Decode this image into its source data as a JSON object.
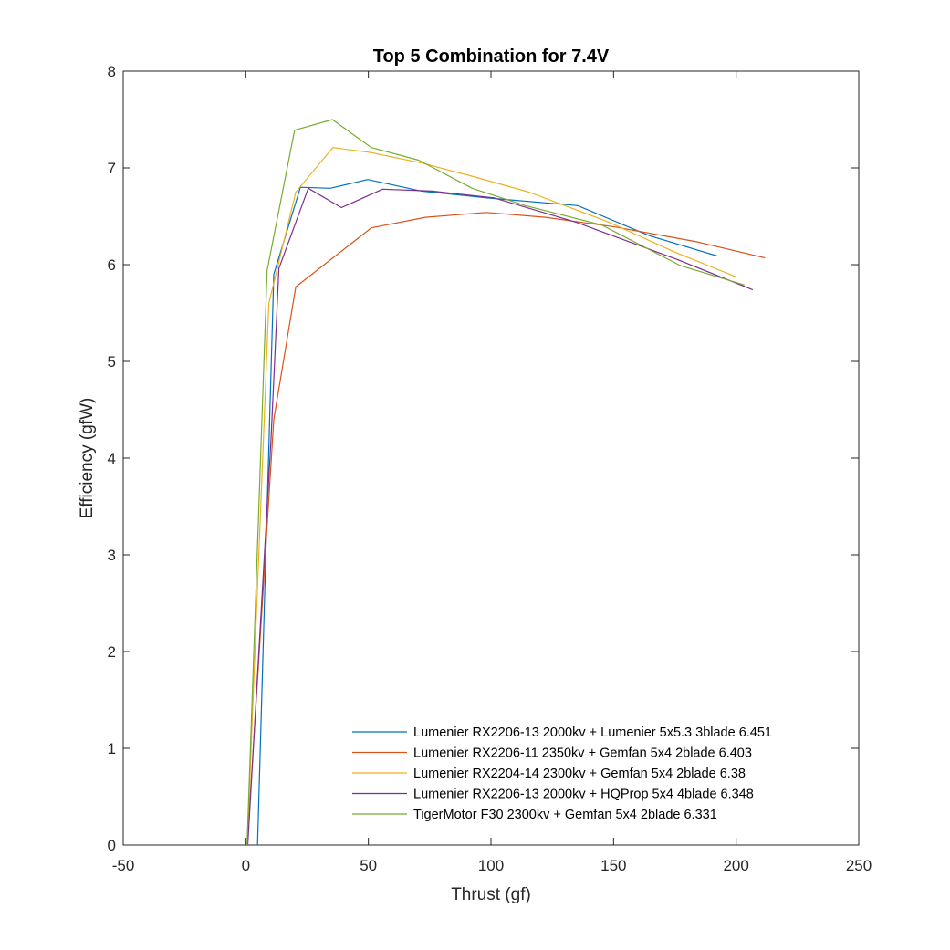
{
  "chart_data": {
    "type": "line",
    "title": "Top 5 Combination for 7.4V",
    "xlabel": "Thrust (gf)",
    "ylabel": "Efficiency (gfW)",
    "xlim": [
      -50,
      250
    ],
    "ylim": [
      0,
      8
    ],
    "xticks": [
      -50,
      0,
      50,
      100,
      150,
      200,
      250
    ],
    "yticks": [
      0,
      1,
      2,
      3,
      4,
      5,
      6,
      7,
      8
    ],
    "xtick_labels": [
      "-50",
      "0",
      "50",
      "100",
      "150",
      "200",
      "250"
    ],
    "ytick_labels": [
      "0",
      "1",
      "2",
      "3",
      "4",
      "5",
      "6",
      "7",
      "8"
    ],
    "grid": false,
    "legend_position": "bottom-right",
    "series": [
      {
        "name": "Lumenier RX2206-13 2000kv + Lumenier 5x5.3 3blade   6.451",
        "color": "#0072BD",
        "x": [
          4.8,
          11.4,
          22.3,
          34.5,
          49.7,
          71.7,
          98.5,
          135.4,
          164.5,
          192.3
        ],
        "y": [
          0,
          5.9,
          6.8,
          6.79,
          6.88,
          6.76,
          6.69,
          6.61,
          6.3,
          6.09
        ]
      },
      {
        "name": "Lumenier RX2206-11 2350kv + Gemfan 5x4 2blade   6.403",
        "color": "#D95319",
        "x": [
          0.6,
          11.4,
          20.4,
          51.2,
          73.3,
          98.1,
          122.2,
          150.6,
          183.3,
          211.8
        ],
        "y": [
          0,
          4.4,
          5.77,
          6.38,
          6.49,
          6.54,
          6.49,
          6.39,
          6.24,
          6.07
        ]
      },
      {
        "name": "Lumenier RX2204-14 2300kv + Gemfan 5x4 2blade     6.38",
        "color": "#EDB120",
        "x": [
          0.6,
          9.4,
          20.4,
          35.5,
          50.7,
          71.9,
          92.8,
          115.5,
          148.1,
          174.9,
          200.4
        ],
        "y": [
          0,
          5.6,
          6.75,
          7.21,
          7.16,
          7.05,
          6.91,
          6.75,
          6.44,
          6.13,
          5.87
        ]
      },
      {
        "name": "Lumenier RX2206-13 2000kv + HQProp 5x4 4blade   6.348",
        "color": "#7E2F8E",
        "x": [
          0.8,
          10.3,
          13.5,
          25.5,
          39.0,
          55.8,
          75.9,
          101.4,
          134.6,
          176.3,
          206.8
        ],
        "y": [
          0,
          4.2,
          5.96,
          6.79,
          6.59,
          6.78,
          6.76,
          6.69,
          6.44,
          6.05,
          5.74
        ]
      },
      {
        "name": "TigerMotor F30 2300kv + Gemfan 5x4 2blade   6.331",
        "color": "#77AC30",
        "x": [
          0.5,
          8.7,
          19.9,
          35.3,
          51.2,
          70.5,
          92.3,
          114.1,
          145.1,
          177.3,
          203.4
        ],
        "y": [
          0,
          5.94,
          7.39,
          7.5,
          7.21,
          7.08,
          6.79,
          6.61,
          6.41,
          5.99,
          5.79
        ]
      }
    ]
  }
}
